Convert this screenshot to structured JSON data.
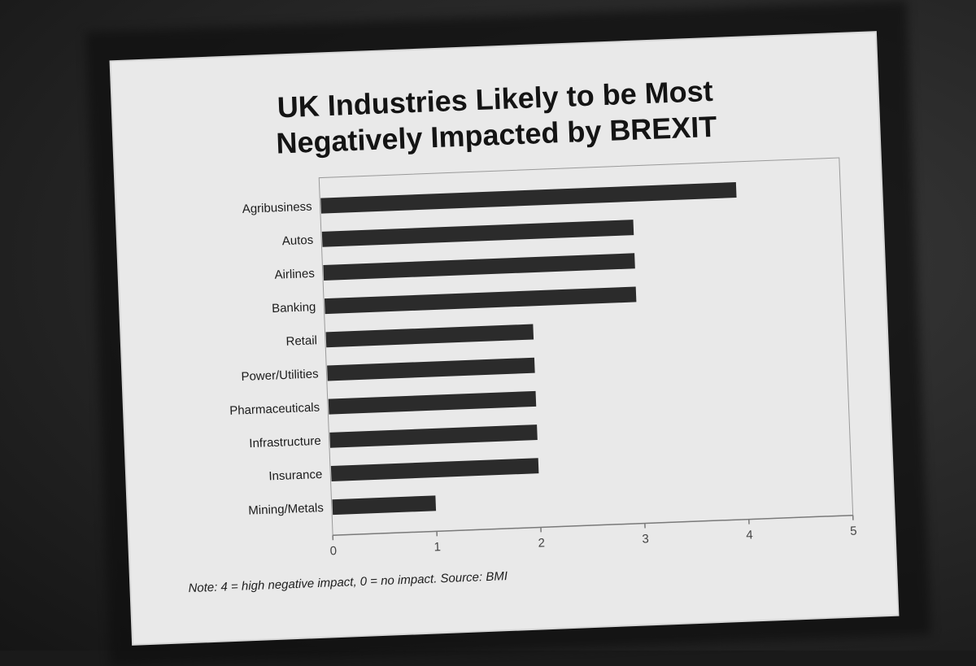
{
  "slide": {
    "title_line1": "UK Industries Likely to be Most",
    "title_line2": "Negatively Impacted by BREXIT",
    "note": "Note: 4 = high negative impact, 0 = no impact. Source: BMI"
  },
  "colors": {
    "bar": "#2b2b2b",
    "slide_background": "#e9e9e9",
    "axis": "#7a7a7a"
  },
  "chart_data": {
    "type": "bar",
    "orientation": "horizontal",
    "title": "UK Industries Likely to be Most Negatively Impacted by BREXIT",
    "categories": [
      "Agribusiness",
      "Autos",
      "Airlines",
      "Banking",
      "Retail",
      "Power/Utilities",
      "Pharmaceuticals",
      "Infrastructure",
      "Insurance",
      "Mining/Metals"
    ],
    "values": [
      4,
      3,
      3,
      3,
      2,
      2,
      2,
      2,
      2,
      1
    ],
    "xlim": [
      0,
      5
    ],
    "xticks": [
      "0",
      "1",
      "2",
      "3",
      "4",
      "5"
    ],
    "xlabel": "",
    "ylabel": "",
    "grid": false,
    "legend": "none"
  }
}
